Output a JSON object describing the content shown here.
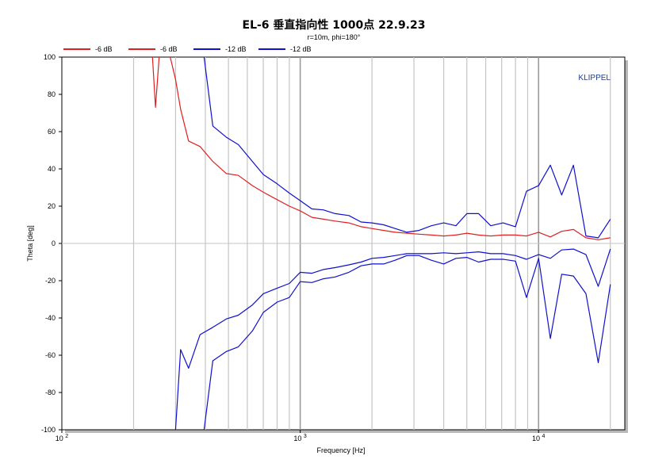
{
  "chart_data": {
    "type": "line",
    "title": "EL-6 垂直指向性 1000点 22.9.23",
    "subtitle": "r=10m, phi=180°",
    "xlabel": "Frequency [Hz]",
    "ylabel": "Theta [deg]",
    "watermark": "KLIPPEL",
    "x_scale": "log",
    "xlim": [
      100,
      23000
    ],
    "ylim": [
      -100,
      100
    ],
    "x_tick_labels": [
      {
        "value": 100,
        "base": "10",
        "exp": "2"
      },
      {
        "value": 1000,
        "base": "10",
        "exp": "3"
      },
      {
        "value": 10000,
        "base": "10",
        "exp": "4"
      }
    ],
    "y_ticks": [
      100,
      80,
      60,
      40,
      20,
      0,
      -20,
      -40,
      -60,
      -80,
      -100
    ],
    "grid": true,
    "legend_position": "top-left",
    "series": [
      {
        "name": "-6 dB",
        "color": "#e02020",
        "points": [
          [
            240,
            100
          ],
          [
            247,
            73
          ],
          [
            256,
            100
          ]
        ]
      },
      {
        "name": "-6 dB",
        "color": "#e02020",
        "points": [
          [
            285,
            100
          ],
          [
            300,
            88
          ],
          [
            315,
            72
          ],
          [
            340,
            55
          ],
          [
            380,
            52
          ],
          [
            430,
            44
          ],
          [
            490,
            37.5
          ],
          [
            550,
            36.5
          ],
          [
            630,
            31
          ],
          [
            700,
            27.5
          ],
          [
            800,
            23.5
          ],
          [
            900,
            20
          ],
          [
            1000,
            17.5
          ],
          [
            1120,
            14
          ],
          [
            1250,
            13
          ],
          [
            1400,
            12
          ],
          [
            1600,
            11
          ],
          [
            1800,
            9
          ],
          [
            2000,
            8
          ],
          [
            2240,
            7
          ],
          [
            2500,
            6
          ],
          [
            2800,
            5.5
          ],
          [
            3150,
            5
          ],
          [
            3550,
            4.5
          ],
          [
            4000,
            4
          ],
          [
            4500,
            4.5
          ],
          [
            5000,
            5.5
          ],
          [
            5600,
            4.5
          ],
          [
            6300,
            4
          ],
          [
            7100,
            4.5
          ],
          [
            8000,
            4.5
          ],
          [
            8900,
            4
          ],
          [
            10000,
            6
          ],
          [
            11200,
            3.5
          ],
          [
            12500,
            6.5
          ],
          [
            14000,
            7.5
          ],
          [
            15800,
            3
          ],
          [
            17800,
            2
          ],
          [
            20000,
            3
          ]
        ]
      },
      {
        "name": "-12 dB",
        "color": "#1010d0",
        "points": [
          [
            395,
            100
          ],
          [
            430,
            63
          ],
          [
            490,
            57
          ],
          [
            550,
            53
          ],
          [
            630,
            44
          ],
          [
            700,
            37
          ],
          [
            800,
            32
          ],
          [
            900,
            27
          ],
          [
            1000,
            23
          ],
          [
            1120,
            18.5
          ],
          [
            1250,
            18
          ],
          [
            1400,
            16
          ],
          [
            1600,
            15
          ],
          [
            1800,
            11.5
          ],
          [
            2000,
            11
          ],
          [
            2240,
            10
          ],
          [
            2500,
            8
          ],
          [
            2800,
            6
          ],
          [
            3150,
            7
          ],
          [
            3550,
            9.5
          ],
          [
            4000,
            11
          ],
          [
            4500,
            9.5
          ],
          [
            5000,
            16
          ],
          [
            5600,
            16
          ],
          [
            6300,
            9.5
          ],
          [
            7100,
            11
          ],
          [
            8000,
            9
          ],
          [
            8900,
            28
          ],
          [
            10000,
            31
          ],
          [
            11200,
            42
          ],
          [
            12500,
            26
          ],
          [
            14000,
            42
          ],
          [
            15800,
            4
          ],
          [
            17800,
            3
          ],
          [
            20000,
            13
          ]
        ]
      },
      {
        "name": "-12 dB",
        "color": "#1010d0",
        "points": [
          [
            300,
            -100
          ],
          [
            315,
            -57
          ],
          [
            340,
            -67
          ],
          [
            380,
            -49
          ],
          [
            430,
            -45
          ],
          [
            490,
            -40.5
          ],
          [
            550,
            -38.5
          ],
          [
            630,
            -33
          ],
          [
            700,
            -27
          ],
          [
            800,
            -24
          ],
          [
            900,
            -21.5
          ],
          [
            1000,
            -15.5
          ],
          [
            1120,
            -16
          ],
          [
            1250,
            -14
          ],
          [
            1400,
            -13
          ],
          [
            1600,
            -11.5
          ],
          [
            1800,
            -10
          ],
          [
            2000,
            -8
          ],
          [
            2240,
            -7.5
          ],
          [
            2500,
            -6.5
          ],
          [
            2800,
            -5.5
          ],
          [
            3150,
            -5.5
          ],
          [
            3550,
            -5.5
          ],
          [
            4000,
            -5
          ],
          [
            4500,
            -5.5
          ],
          [
            5000,
            -5
          ],
          [
            5600,
            -4.5
          ],
          [
            6300,
            -5.5
          ],
          [
            7100,
            -5.5
          ],
          [
            8000,
            -6.5
          ],
          [
            8900,
            -8.5
          ],
          [
            10000,
            -6
          ],
          [
            11200,
            -8
          ],
          [
            12500,
            -3.5
          ],
          [
            14000,
            -3
          ],
          [
            15800,
            -6
          ],
          [
            17800,
            -23
          ],
          [
            20000,
            -3
          ]
        ]
      },
      {
        "name": "",
        "color": "#1010d0",
        "points": [
          [
            395,
            -100
          ],
          [
            430,
            -63
          ],
          [
            490,
            -58
          ],
          [
            550,
            -55.5
          ],
          [
            630,
            -47
          ],
          [
            700,
            -37
          ],
          [
            800,
            -31.5
          ],
          [
            900,
            -29
          ],
          [
            1000,
            -20.5
          ],
          [
            1120,
            -21
          ],
          [
            1250,
            -19
          ],
          [
            1400,
            -18
          ],
          [
            1600,
            -15.5
          ],
          [
            1800,
            -12
          ],
          [
            2000,
            -11
          ],
          [
            2240,
            -11
          ],
          [
            2500,
            -9
          ],
          [
            2800,
            -6.5
          ],
          [
            3150,
            -6.5
          ],
          [
            3550,
            -9
          ],
          [
            4000,
            -11
          ],
          [
            4500,
            -8
          ],
          [
            5000,
            -7.5
          ],
          [
            5600,
            -10
          ],
          [
            6300,
            -8.5
          ],
          [
            7100,
            -8.5
          ],
          [
            8000,
            -9.5
          ],
          [
            8900,
            -29
          ],
          [
            10000,
            -8
          ],
          [
            11200,
            -51
          ],
          [
            12500,
            -16.5
          ],
          [
            14000,
            -17.5
          ],
          [
            15800,
            -27
          ],
          [
            17800,
            -64
          ],
          [
            20000,
            -22
          ]
        ]
      }
    ]
  }
}
